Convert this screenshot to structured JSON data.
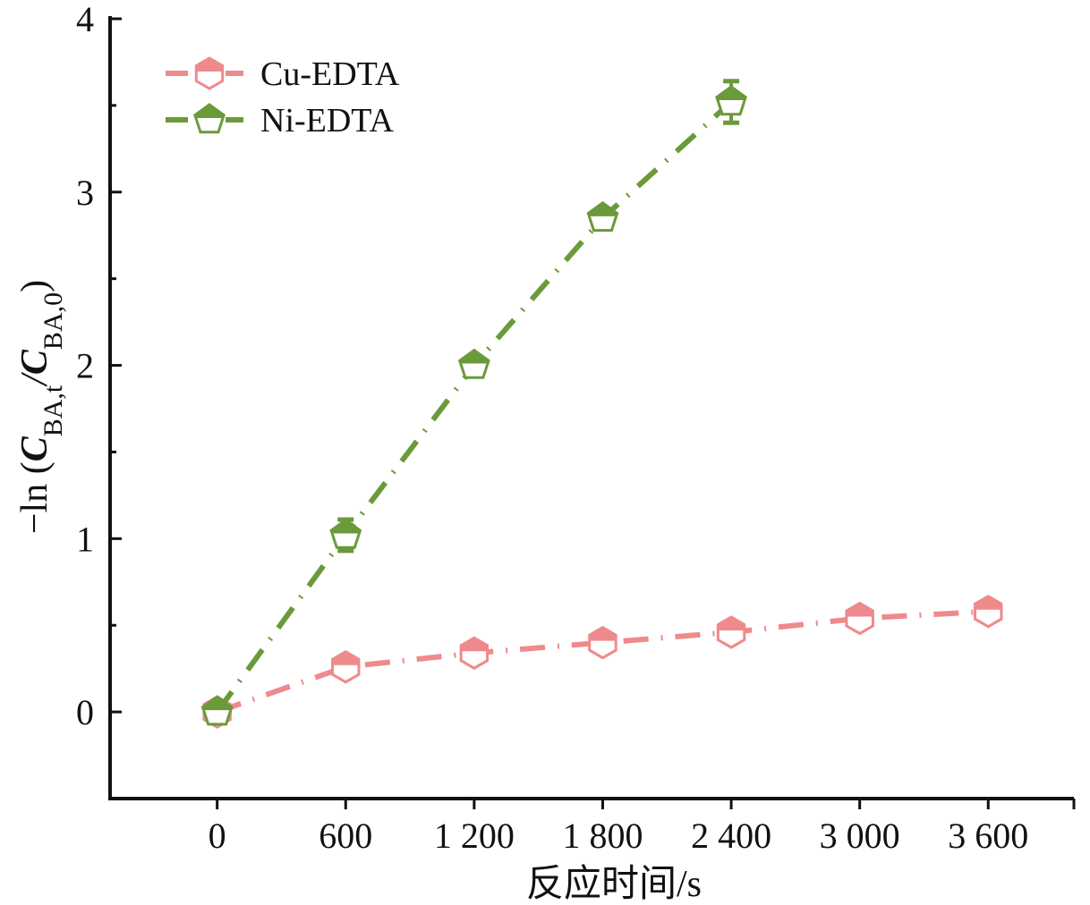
{
  "chart_data": {
    "type": "line",
    "title": "",
    "xlabel": "反应时间/s",
    "ylabel_parts": [
      "−ln (",
      "C",
      "BA,t",
      "/",
      "C",
      "BA,0",
      ")"
    ],
    "xlim": [
      -500,
      4000
    ],
    "ylim": [
      -0.5,
      4
    ],
    "x": [
      0,
      600,
      1200,
      1800,
      2400,
      3000,
      3600
    ],
    "xtick_labels": [
      "0",
      "600",
      "1 200",
      "1 800",
      "2 400",
      "3 000",
      "3 600"
    ],
    "yticks": [
      0,
      1,
      2,
      3,
      4
    ],
    "ytick_labels": [
      "0",
      "1",
      "2",
      "3",
      "4"
    ],
    "grid": false,
    "legend_position": "top-left",
    "series": [
      {
        "name": "Cu-EDTA",
        "color": "#ee8a8c",
        "marker": "hexagon-half-filled",
        "x": [
          0,
          600,
          1200,
          1800,
          2400,
          3000,
          3600
        ],
        "values": [
          0,
          0.26,
          0.34,
          0.4,
          0.46,
          0.54,
          0.58
        ],
        "errors": [
          0.02,
          0.03,
          0.03,
          0.03,
          0.03,
          0.03,
          0.03
        ]
      },
      {
        "name": "Ni-EDTA",
        "color": "#6b9a3a",
        "marker": "pentagon-half-filled",
        "x": [
          0,
          600,
          1200,
          1800,
          2400
        ],
        "values": [
          0,
          1.02,
          2.0,
          2.85,
          3.52
        ],
        "errors": [
          0.02,
          0.09,
          0.04,
          0.05,
          0.12
        ]
      }
    ]
  }
}
